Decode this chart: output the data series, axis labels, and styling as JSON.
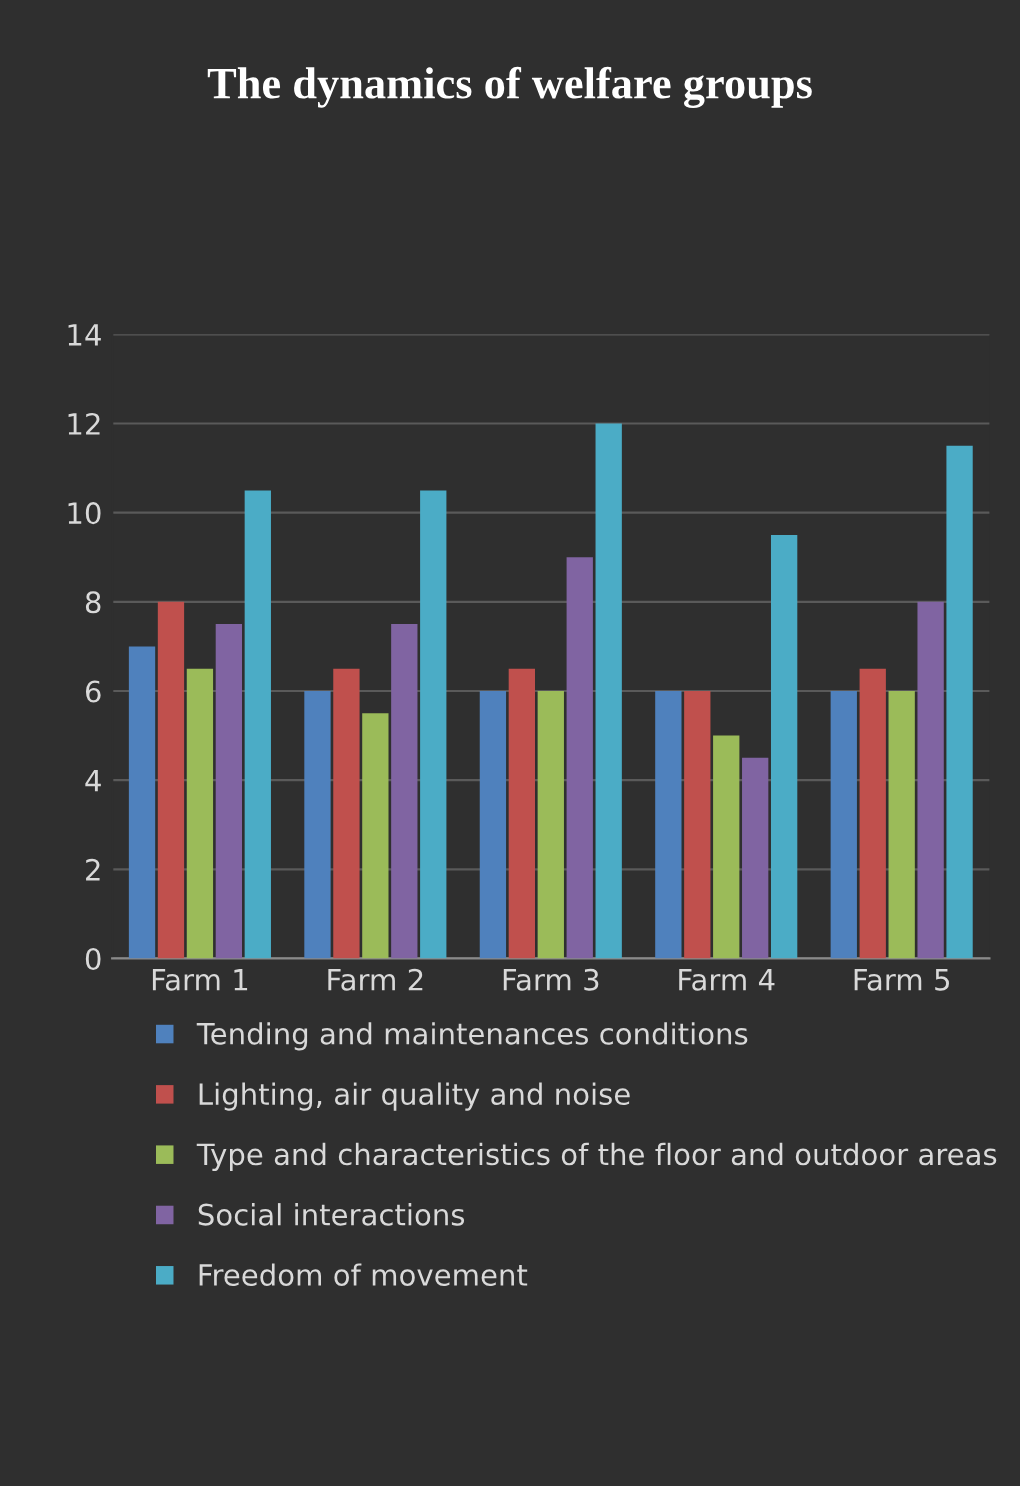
{
  "chart_data": {
    "type": "bar",
    "title": "The dynamics of welfare groups",
    "categories": [
      "Farm 1",
      "Farm 2",
      "Farm 3",
      "Farm 4",
      "Farm 5"
    ],
    "series": [
      {
        "name": "Tending and maintenances conditions",
        "color": "#4f81bd",
        "values": [
          7,
          6,
          6,
          6,
          6
        ]
      },
      {
        "name": "Lighting, air quality and noise",
        "color": "#c0504d",
        "values": [
          8,
          6.5,
          6.5,
          6,
          6.5
        ]
      },
      {
        "name": "Type and characteristics of the floor and outdoor areas",
        "color": "#9bbb59",
        "values": [
          6.5,
          5.5,
          6,
          5,
          6
        ]
      },
      {
        "name": "Social interactions",
        "color": "#8064a2",
        "values": [
          7.5,
          7.5,
          9,
          4.5,
          8
        ]
      },
      {
        "name": "Freedom of movement",
        "color": "#4bacc6",
        "values": [
          10.5,
          10.5,
          12,
          9.5,
          11.5
        ]
      }
    ],
    "ylim": [
      0,
      14
    ],
    "yticks": [
      0,
      2,
      4,
      6,
      8,
      10,
      12,
      14
    ],
    "grid": "y",
    "legend": "bottom"
  }
}
